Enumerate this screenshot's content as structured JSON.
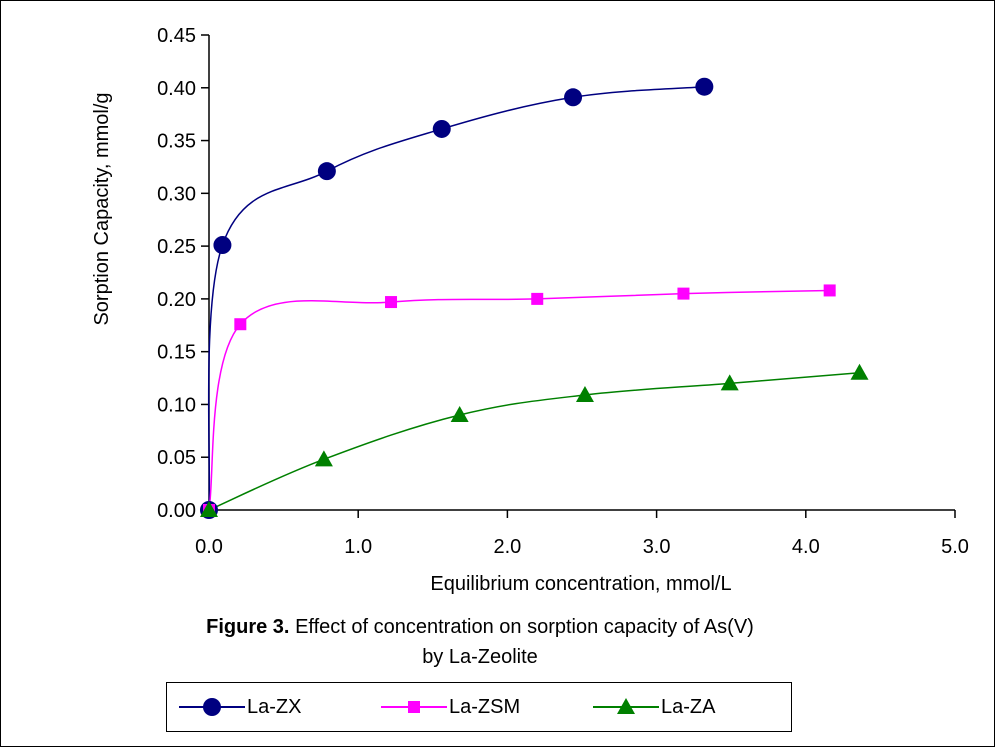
{
  "chart_data": {
    "type": "scatter",
    "xlabel": "Equilibrium concentration, mmol/L",
    "ylabel": "Sorption Capacity, mmol/g",
    "xlim": [
      0,
      5
    ],
    "ylim": [
      0,
      0.45
    ],
    "xticks": [
      "0.0",
      "1.0",
      "2.0",
      "3.0",
      "4.0",
      "5.0"
    ],
    "yticks": [
      "0.00",
      "0.05",
      "0.10",
      "0.15",
      "0.20",
      "0.25",
      "0.30",
      "0.35",
      "0.40",
      "0.45"
    ],
    "grid": false,
    "legend_position": "bottom",
    "series": [
      {
        "name": "La-ZX",
        "color": "#000080",
        "marker": "circle",
        "x": [
          0.0,
          0.09,
          0.79,
          1.56,
          2.44,
          3.32
        ],
        "y": [
          0.0,
          0.251,
          0.321,
          0.361,
          0.391,
          0.401
        ]
      },
      {
        "name": "La-ZSM",
        "color": "#FF00FF",
        "marker": "square",
        "x": [
          0.0,
          0.21,
          1.22,
          2.2,
          3.18,
          4.16
        ],
        "y": [
          0.0,
          0.176,
          0.197,
          0.2,
          0.205,
          0.208
        ]
      },
      {
        "name": "La-ZA",
        "color": "#008000",
        "marker": "triangle",
        "x": [
          0.0,
          0.77,
          1.68,
          2.52,
          3.49,
          4.36
        ],
        "y": [
          0.0,
          0.048,
          0.09,
          0.109,
          0.12,
          0.13
        ]
      }
    ]
  },
  "caption": {
    "label": "Figure 3.",
    "line1": "Effect of concentration on sorption capacity of As(V)",
    "line2": "by La-Zeolite"
  }
}
